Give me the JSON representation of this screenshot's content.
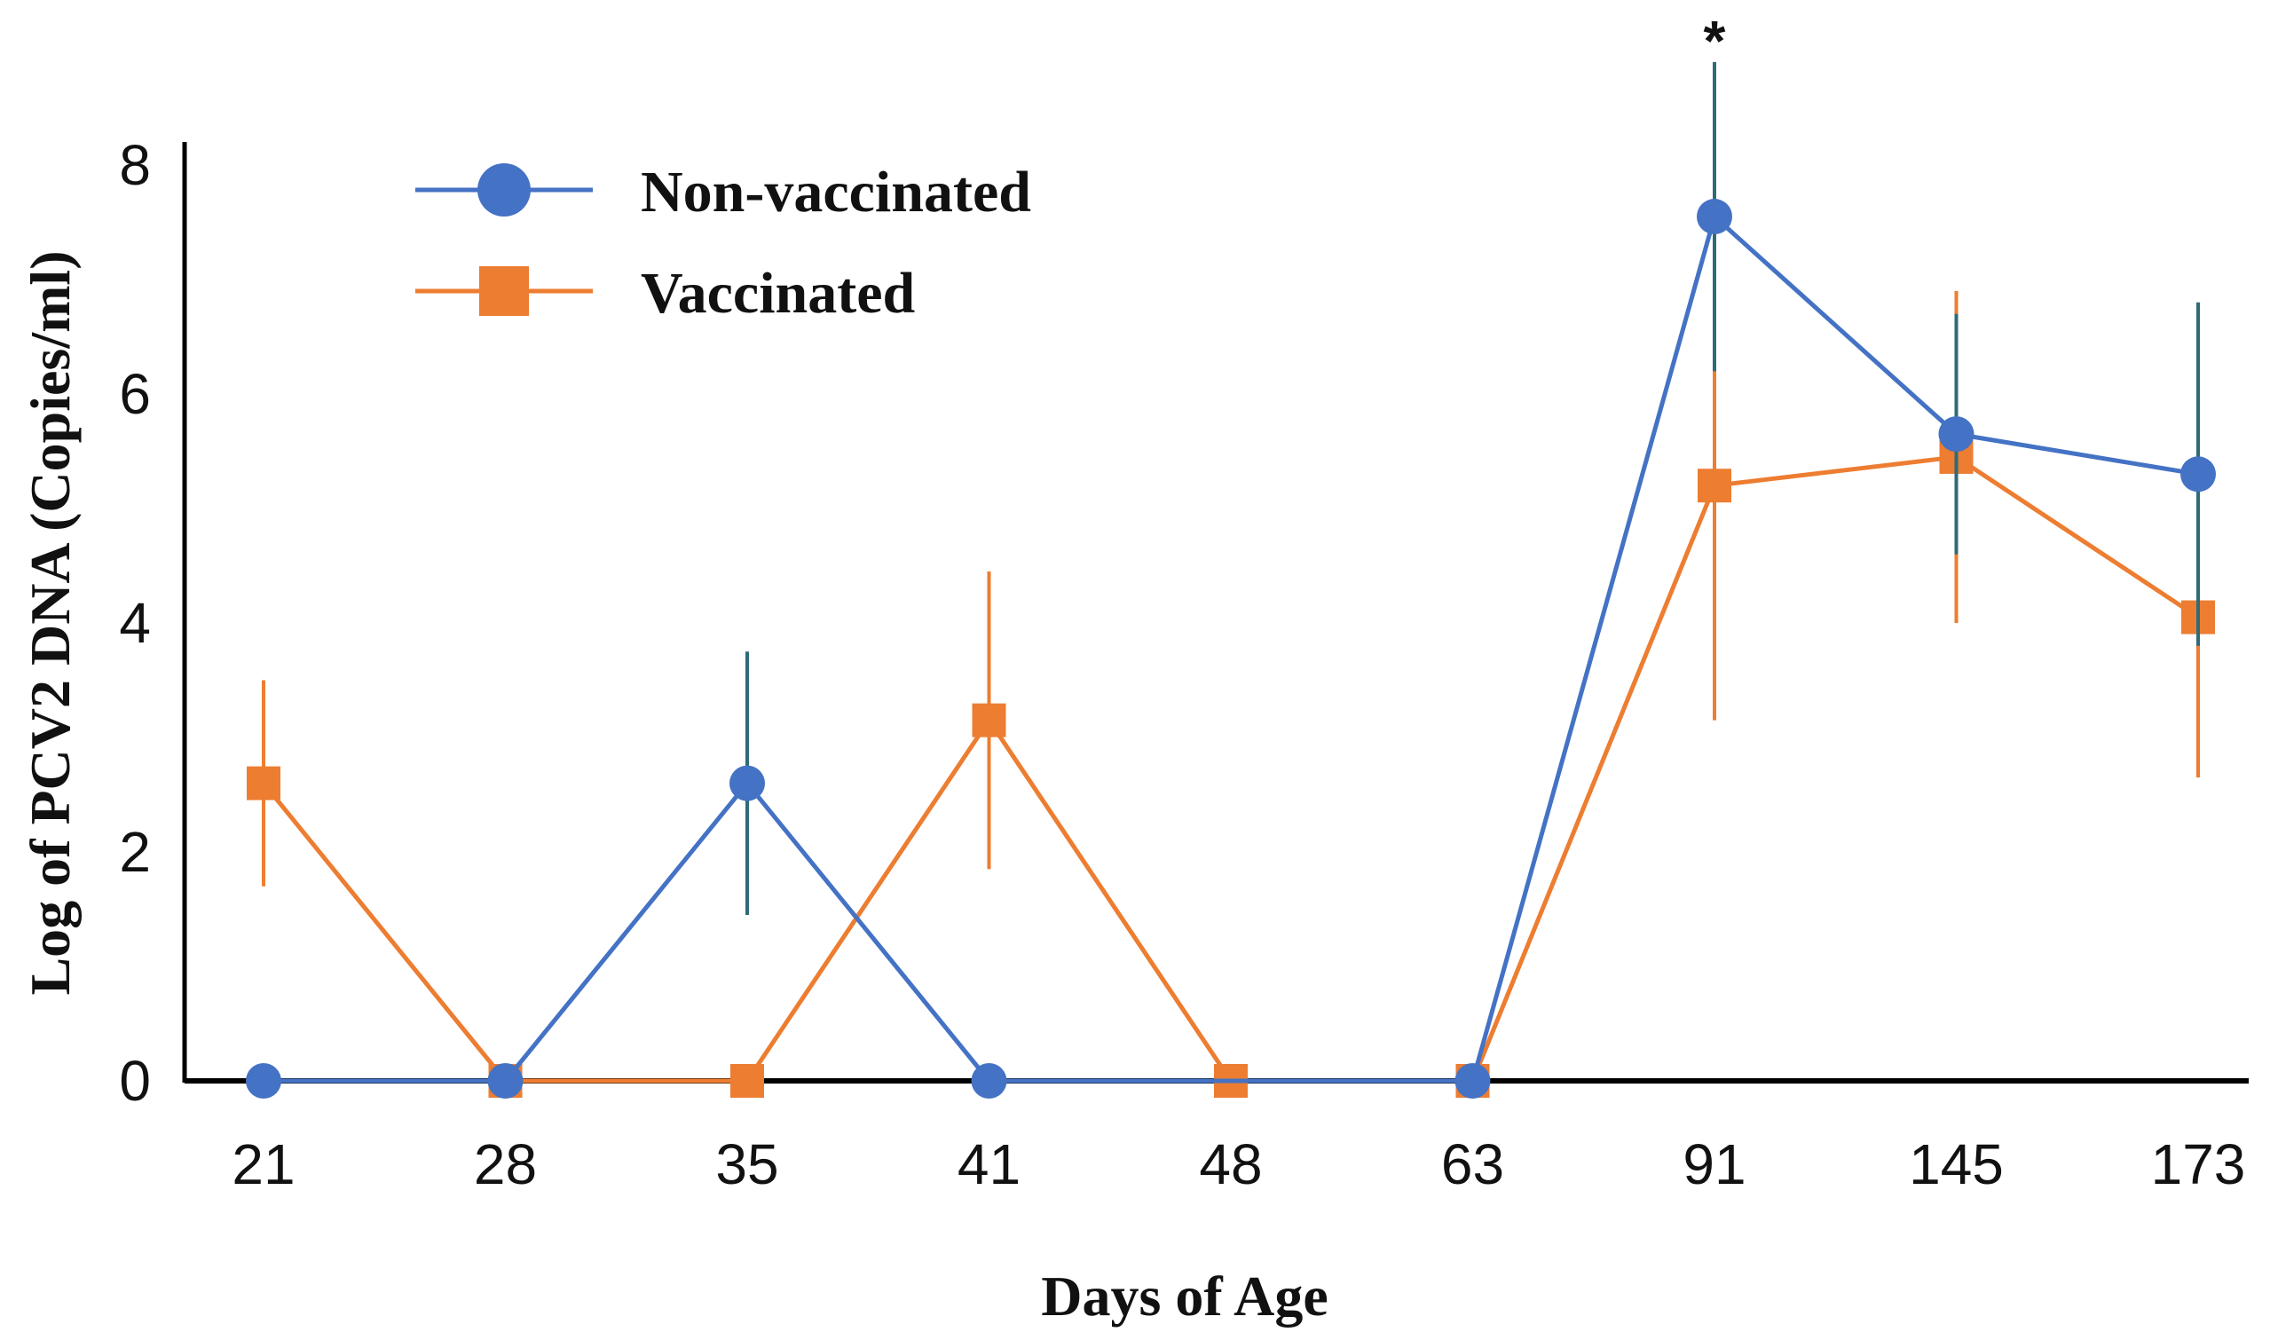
{
  "chart_data": {
    "type": "line",
    "title": "",
    "xlabel": "Days of Age",
    "ylabel": "Log of PCV2  DNA (Copies/ml)",
    "categories": [
      "21",
      "28",
      "35",
      "41",
      "48",
      "63",
      "91",
      "145",
      "173"
    ],
    "yticks": [
      "0",
      "2",
      "4",
      "6",
      "8"
    ],
    "ylim": [
      0,
      8.5
    ],
    "grid": false,
    "legend_position": "top-left",
    "series": [
      {
        "name": "Non-vaccinated",
        "color": "#4472C4",
        "errorbar_color": "#2E6B78",
        "marker": "circle",
        "values": [
          0,
          0,
          2.6,
          0,
          null,
          0,
          7.55,
          5.65,
          5.3
        ],
        "errors": [
          0,
          0,
          1.15,
          0,
          null,
          0,
          1.35,
          1.05,
          1.5
        ]
      },
      {
        "name": "Vaccinated",
        "color": "#ED7D31",
        "errorbar_color": "#ED7D31",
        "marker": "square",
        "values": [
          2.6,
          0,
          0,
          3.15,
          0,
          0,
          5.2,
          5.45,
          4.05
        ],
        "errors": [
          0.9,
          0,
          0,
          1.3,
          0,
          0,
          2.05,
          1.45,
          1.4
        ]
      }
    ],
    "annotations": [
      {
        "text": "*",
        "category": "91"
      }
    ]
  }
}
